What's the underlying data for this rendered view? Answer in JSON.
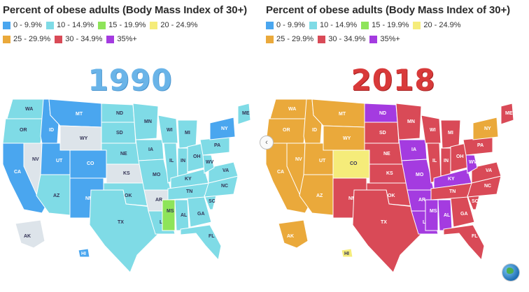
{
  "left": {
    "title": "Percent of obese adults (Body Mass Index of 30+)",
    "year": "1990",
    "legend": [
      {
        "label": "0 - 9.9%",
        "color": "#4aa6ef"
      },
      {
        "label": "10 - 14.9%",
        "color": "#7fdbe6"
      },
      {
        "label": "15 - 19.9%",
        "color": "#8ee45a"
      },
      {
        "label": "20 - 24.9%",
        "color": "#f5ec7a"
      },
      {
        "label": "25 - 29.9%",
        "color": "#eaa93b"
      },
      {
        "label": "30 - 34.9%",
        "color": "#d94a57"
      },
      {
        "label": "35%+",
        "color": "#a43be0"
      }
    ]
  },
  "right": {
    "title": "Percent of obese adults (Body Mass Index of 30+)",
    "year": "2018",
    "legend": [
      {
        "label": "0 - 9.9%",
        "color": "#4aa6ef"
      },
      {
        "label": "10 - 14.9%",
        "color": "#7fdbe6"
      },
      {
        "label": "15 - 19.9%",
        "color": "#8ee45a"
      },
      {
        "label": "20 - 24.9%",
        "color": "#f5ec7a"
      },
      {
        "label": "25 - 29.9%",
        "color": "#eaa93b"
      },
      {
        "label": "30 - 34.9%",
        "color": "#d94a57"
      },
      {
        "label": "35%+",
        "color": "#a43be0"
      }
    ]
  },
  "map_1990": {
    "WA": "10 - 14.9%",
    "OR": "10 - 14.9%",
    "CA": "0 - 9.9%",
    "ID": "0 - 9.9%",
    "NV": "no data",
    "MT": "0 - 9.9%",
    "WY": "no data",
    "UT": "0 - 9.9%",
    "AZ": "10 - 14.9%",
    "CO": "0 - 9.9%",
    "NM": "0 - 9.9%",
    "ND": "10 - 14.9%",
    "SD": "10 - 14.9%",
    "NE": "10 - 14.9%",
    "KS": "no data",
    "OK": "10 - 14.9%",
    "TX": "10 - 14.9%",
    "MN": "10 - 14.9%",
    "IA": "10 - 14.9%",
    "MO": "10 - 14.9%",
    "AR": "no data",
    "LA": "10 - 14.9%",
    "WI": "10 - 14.9%",
    "IL": "10 - 14.9%",
    "MI": "10 - 14.9%",
    "IN": "10 - 14.9%",
    "OH": "10 - 14.9%",
    "KY": "10 - 14.9%",
    "TN": "10 - 14.9%",
    "MS": "15 - 19.9%",
    "AL": "10 - 14.9%",
    "GA": "10 - 14.9%",
    "FL": "10 - 14.9%",
    "SC": "10 - 14.9%",
    "NC": "10 - 14.9%",
    "VA": "10 - 14.9%",
    "WV": "10 - 14.9%",
    "PA": "10 - 14.9%",
    "NY": "0 - 9.9%",
    "ME": "10 - 14.9%",
    "AK": "no data",
    "HI": "0 - 9.9%"
  },
  "map_2018": {
    "WA": "25 - 29.9%",
    "OR": "25 - 29.9%",
    "CA": "25 - 29.9%",
    "ID": "25 - 29.9%",
    "NV": "25 - 29.9%",
    "MT": "25 - 29.9%",
    "WY": "25 - 29.9%",
    "UT": "25 - 29.9%",
    "AZ": "25 - 29.9%",
    "CO": "20 - 24.9%",
    "NM": "30 - 34.9%",
    "ND": "35%+",
    "SD": "30 - 34.9%",
    "NE": "30 - 34.9%",
    "KS": "30 - 34.9%",
    "OK": "30 - 34.9%",
    "TX": "30 - 34.9%",
    "MN": "30 - 34.9%",
    "IA": "35%+",
    "MO": "35%+",
    "AR": "35%+",
    "LA": "35%+",
    "WI": "30 - 34.9%",
    "IL": "30 - 34.9%",
    "MI": "30 - 34.9%",
    "IN": "30 - 34.9%",
    "OH": "30 - 34.9%",
    "KY": "35%+",
    "TN": "30 - 34.9%",
    "MS": "35%+",
    "AL": "35%+",
    "GA": "30 - 34.9%",
    "FL": "30 - 34.9%",
    "SC": "30 - 34.9%",
    "NC": "30 - 34.9%",
    "VA": "30 - 34.9%",
    "WV": "35%+",
    "PA": "30 - 34.9%",
    "NY": "25 - 29.9%",
    "ME": "30 - 34.9%",
    "AK": "25 - 29.9%",
    "HI": "20 - 24.9%"
  },
  "nav": {
    "arrow": "‹"
  }
}
